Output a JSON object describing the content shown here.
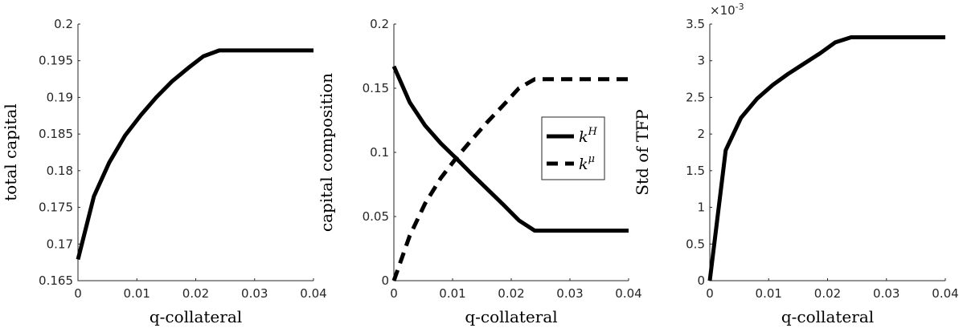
{
  "chart_data": [
    {
      "type": "line",
      "xlabel": "q-collateral",
      "ylabel": "total capital",
      "xlim": [
        0,
        0.04
      ],
      "ylim": [
        0.165,
        0.2
      ],
      "xticks": [
        0,
        0.01,
        0.02,
        0.03,
        0.04
      ],
      "xtick_labels": [
        "0",
        "0.01",
        "0.02",
        "0.03",
        "0.04"
      ],
      "yticks": [
        0.165,
        0.17,
        0.175,
        0.18,
        0.185,
        0.19,
        0.195,
        0.2
      ],
      "ytick_labels": [
        "0.165",
        "0.17",
        "0.175",
        "0.18",
        "0.185",
        "0.19",
        "0.195",
        "0.2"
      ],
      "grid": false,
      "series": [
        {
          "style": "solid",
          "x": [
            0,
            0.0027,
            0.0053,
            0.008,
            0.0107,
            0.0133,
            0.016,
            0.0187,
            0.0213,
            0.024,
            0.04
          ],
          "y": [
            0.1679,
            0.1765,
            0.1811,
            0.1848,
            0.1876,
            0.19,
            0.1922,
            0.194,
            0.1956,
            0.1964,
            0.1964
          ]
        }
      ]
    },
    {
      "type": "line",
      "xlabel": "q-collateral",
      "ylabel": "capital composition",
      "xlim": [
        0,
        0.04
      ],
      "ylim": [
        0,
        0.2
      ],
      "xticks": [
        0,
        0.01,
        0.02,
        0.03,
        0.04
      ],
      "xtick_labels": [
        "0",
        "0.01",
        "0.02",
        "0.03",
        "0.04"
      ],
      "yticks": [
        0,
        0.05,
        0.1,
        0.15,
        0.2
      ],
      "ytick_labels": [
        "0",
        "0.05",
        "0.1",
        "0.15",
        "0.2"
      ],
      "grid": false,
      "legend_position": "right",
      "series": [
        {
          "name": "k",
          "superscript": "H",
          "style": "solid",
          "x": [
            0,
            0.0027,
            0.0053,
            0.008,
            0.0107,
            0.0133,
            0.016,
            0.0187,
            0.0213,
            0.024,
            0.04
          ],
          "y": [
            0.167,
            0.139,
            0.121,
            0.107,
            0.095,
            0.083,
            0.071,
            0.059,
            0.047,
            0.039,
            0.039
          ]
        },
        {
          "name": "k",
          "superscript": "μ",
          "style": "dashed",
          "x": [
            0,
            0.0027,
            0.0053,
            0.008,
            0.0107,
            0.0133,
            0.016,
            0.0187,
            0.0213,
            0.024,
            0.04
          ],
          "y": [
            0,
            0.035,
            0.06,
            0.08,
            0.096,
            0.11,
            0.124,
            0.137,
            0.15,
            0.157,
            0.157
          ]
        }
      ]
    },
    {
      "type": "line",
      "xlabel": "q-collateral",
      "ylabel": "Std of TFP",
      "xlim": [
        0,
        0.04
      ],
      "ylim": [
        0,
        3.5
      ],
      "exponent_label": "×10",
      "exponent_power": "-3",
      "xticks": [
        0,
        0.01,
        0.02,
        0.03,
        0.04
      ],
      "xtick_labels": [
        "0",
        "0.01",
        "0.02",
        "0.03",
        "0.04"
      ],
      "yticks": [
        0,
        0.5,
        1,
        1.5,
        2,
        2.5,
        3,
        3.5
      ],
      "ytick_labels": [
        "0",
        "0.5",
        "1",
        "1.5",
        "2",
        "2.5",
        "3",
        "3.5"
      ],
      "grid": false,
      "series": [
        {
          "style": "solid",
          "x": [
            0,
            0.0027,
            0.0053,
            0.008,
            0.0107,
            0.0133,
            0.016,
            0.0187,
            0.0213,
            0.024,
            0.04
          ],
          "y": [
            0,
            1.78,
            2.22,
            2.48,
            2.67,
            2.82,
            2.96,
            3.1,
            3.25,
            3.32,
            3.32
          ]
        }
      ]
    }
  ]
}
